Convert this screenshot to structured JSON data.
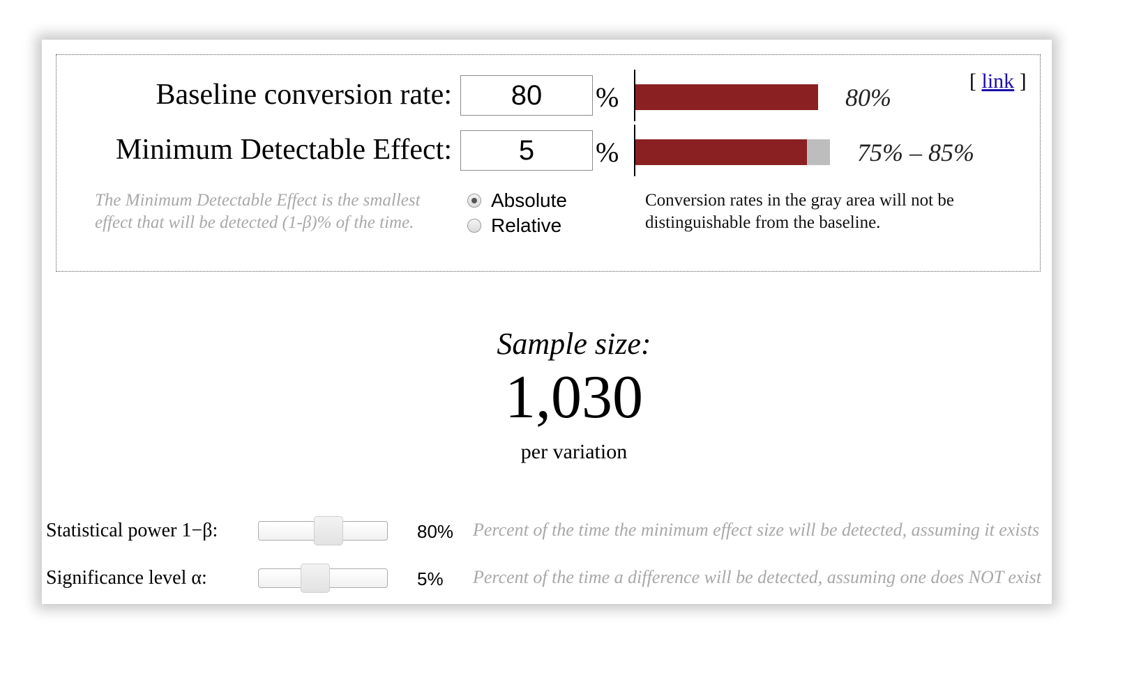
{
  "baseline": {
    "label": "Baseline conversion rate:",
    "value": "80",
    "unit": "%",
    "bar_fraction": 0.8,
    "bar_label": "80%"
  },
  "mde": {
    "label": "Minimum Detectable Effect:",
    "value": "5",
    "unit": "%",
    "range_low_fraction": 0.75,
    "range_high_fraction": 0.85,
    "bar_label": "75% – 85%",
    "help": "The Minimum Detectable Effect is the smallest effect that will be detected (1-β)% of the time.",
    "help_line1": "The Minimum Detectable Effect is the smallest",
    "help_line2": "effect that will be detected (1-β)% of the time.",
    "options": [
      {
        "label": "Absolute",
        "checked": true
      },
      {
        "label": "Relative",
        "checked": false
      }
    ],
    "note_line1": "Conversion rates in the gray area will not be",
    "note_line2": "distinguishable from the baseline."
  },
  "link": {
    "open": "[",
    "text": "link",
    "close": "]"
  },
  "sample_size": {
    "title": "Sample size:",
    "value": "1,030",
    "unit": "per variation"
  },
  "power": {
    "label": "Statistical power 1−β:",
    "value": "80%",
    "slider_fraction": 0.55,
    "help": "Percent of the time the minimum effect size will be detected, assuming it exists"
  },
  "significance": {
    "label": "Significance level α:",
    "value": "5%",
    "slider_fraction": 0.42,
    "help": "Percent of the time a difference will be detected, assuming one does NOT exist"
  },
  "colors": {
    "bar": "#8b2023",
    "range": "#bdbdbd",
    "link": "#1a0dab"
  }
}
